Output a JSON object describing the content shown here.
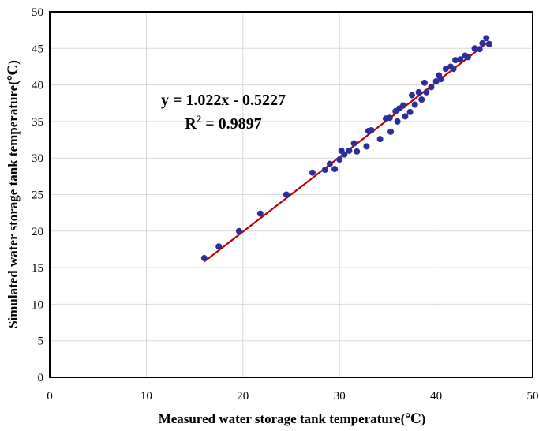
{
  "chart_data": {
    "type": "scatter",
    "xlabel": "Measured water storage tank temperature(℃)",
    "ylabel": "Simulated water storage tank temperature(℃)",
    "xlim": [
      0,
      50
    ],
    "ylim": [
      0,
      50
    ],
    "xticks": [
      "0",
      "10",
      "20",
      "30",
      "40",
      "50"
    ],
    "yticks": [
      "0",
      "5",
      "10",
      "15",
      "20",
      "25",
      "30",
      "35",
      "40",
      "45",
      "50"
    ],
    "grid": true,
    "legend": "none",
    "trendline": {
      "slope": 1.022,
      "intercept": -0.5227,
      "x_range": [
        16.0,
        45.5
      ],
      "equation_label": "y = 1.022x - 0.5227",
      "r2_label_prefix": "R",
      "r2_label_sup": "2",
      "r2_label_value": " = 0.9897"
    },
    "colors": {
      "points": "#2a2f9b",
      "trendline": "#c00000",
      "grid": "#d9d9d9",
      "axes": "#000000"
    },
    "series": [
      {
        "points": [
          [
            16.0,
            16.3
          ],
          [
            17.5,
            17.9
          ],
          [
            19.6,
            20.0
          ],
          [
            21.8,
            22.4
          ],
          [
            24.5,
            25.0
          ],
          [
            27.2,
            28.0
          ],
          [
            28.5,
            28.4
          ],
          [
            29.0,
            29.2
          ],
          [
            29.5,
            28.5
          ],
          [
            30.0,
            29.8
          ],
          [
            30.2,
            31.0
          ],
          [
            30.5,
            30.5
          ],
          [
            31.0,
            31.0
          ],
          [
            31.5,
            32.0
          ],
          [
            31.8,
            30.9
          ],
          [
            32.8,
            31.6
          ],
          [
            33.0,
            33.7
          ],
          [
            33.3,
            33.8
          ],
          [
            34.2,
            32.6
          ],
          [
            34.8,
            35.4
          ],
          [
            35.2,
            35.5
          ],
          [
            35.3,
            33.6
          ],
          [
            35.8,
            36.4
          ],
          [
            36.0,
            35.0
          ],
          [
            36.2,
            36.8
          ],
          [
            36.6,
            37.2
          ],
          [
            36.8,
            35.7
          ],
          [
            37.3,
            36.3
          ],
          [
            37.5,
            38.6
          ],
          [
            37.8,
            37.3
          ],
          [
            38.2,
            39.0
          ],
          [
            38.5,
            38.0
          ],
          [
            38.8,
            40.3
          ],
          [
            39.0,
            39.0
          ],
          [
            39.5,
            39.7
          ],
          [
            40.0,
            40.5
          ],
          [
            40.3,
            41.3
          ],
          [
            40.5,
            40.8
          ],
          [
            41.0,
            42.2
          ],
          [
            41.5,
            42.5
          ],
          [
            41.8,
            42.2
          ],
          [
            42.0,
            43.4
          ],
          [
            42.5,
            43.5
          ],
          [
            43.0,
            44.0
          ],
          [
            43.3,
            43.8
          ],
          [
            44.0,
            45.0
          ],
          [
            44.5,
            44.9
          ],
          [
            44.8,
            45.7
          ],
          [
            45.2,
            46.4
          ],
          [
            45.5,
            45.6
          ]
        ]
      }
    ]
  }
}
